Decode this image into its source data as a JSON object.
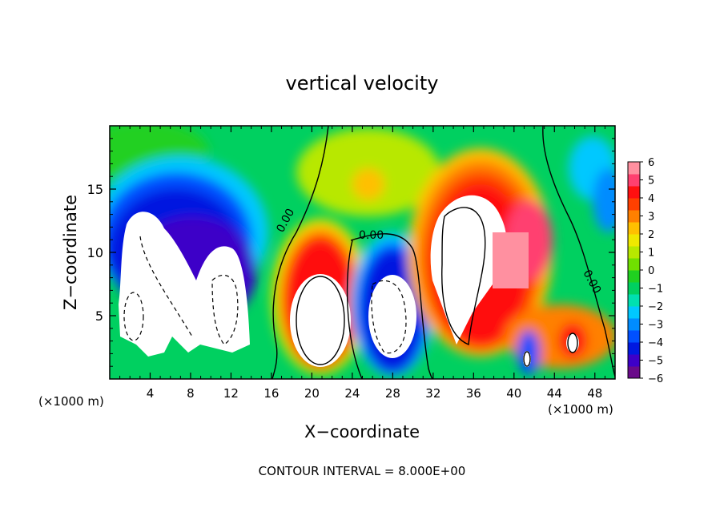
{
  "chart_data": {
    "type": "heatmap",
    "title": "vertical velocity",
    "xlabel": "X−coordinate",
    "ylabel": "Z−coordinate",
    "x_unit_left": "(×1000 m)",
    "x_unit_right": "(×1000 m)",
    "footer": "CONTOUR INTERVAL = 8.000E+00",
    "xlim": [
      0,
      50
    ],
    "ylim": [
      0,
      20
    ],
    "x_ticks": [
      "4",
      "8",
      "12",
      "16",
      "20",
      "24",
      "28",
      "32",
      "36",
      "40",
      "44",
      "48"
    ],
    "y_ticks": [
      "5",
      "10",
      "15"
    ],
    "colorbar": {
      "range": [
        -6,
        6
      ],
      "ticks": [
        "6",
        "5",
        "4",
        "3",
        "2",
        "1",
        "0",
        "−1",
        "−2",
        "−3",
        "−4",
        "−5",
        "−6"
      ],
      "colors": [
        "#6a0a8a",
        "#3d00c8",
        "#0018e0",
        "#0050ff",
        "#008cff",
        "#00c8ff",
        "#00e0b0",
        "#00d060",
        "#20d020",
        "#70e000",
        "#b8e800",
        "#f0e800",
        "#ffc000",
        "#ff8000",
        "#ff4000",
        "#ff1010",
        "#ff4070",
        "#ff90a0"
      ]
    },
    "contour_labels": [
      "0.00",
      "0.00",
      "0.00"
    ],
    "features": [
      {
        "x": 6,
        "z": 8,
        "rx": 4.5,
        "rz": 6,
        "w": -8
      },
      {
        "x": 11.5,
        "z": 7,
        "rx": 3,
        "rz": 5,
        "w": -8
      },
      {
        "x": 21,
        "z": 5.5,
        "rx": 3,
        "rz": 5,
        "w": 8
      },
      {
        "x": 28,
        "z": 5.5,
        "rx": 3,
        "rz": 5,
        "w": -8
      },
      {
        "x": 35,
        "z": 9,
        "rx": 3.5,
        "rz": 8,
        "w": 8
      },
      {
        "x": 40,
        "z": 2,
        "rx": 1,
        "rz": 2,
        "w": -6
      },
      {
        "x": 45,
        "z": 3,
        "rx": 1.5,
        "rz": 2,
        "w": 6
      },
      {
        "x": 49,
        "z": 15,
        "rx": 2,
        "rz": 3,
        "w": -3
      }
    ]
  }
}
